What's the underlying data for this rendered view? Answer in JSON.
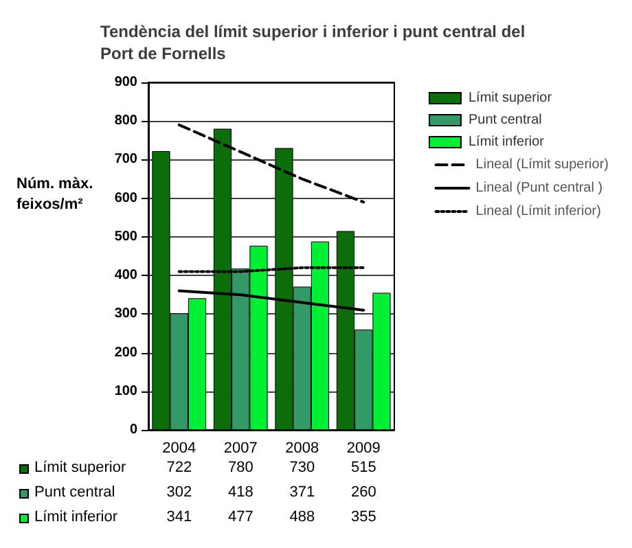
{
  "chart_data": {
    "type": "bar",
    "title": "Tendència del límit superior i inferior i punt central del Port de Fornells",
    "ylabel": "Núm. màx. feixos/m²",
    "categories": [
      "2004",
      "2007",
      "2008",
      "2009"
    ],
    "series": [
      {
        "name": "Límit superior",
        "color": "#0b6e0b",
        "values": [
          722,
          780,
          730,
          515
        ],
        "value_labels": [
          "722",
          "780",
          "730",
          "515"
        ]
      },
      {
        "name": "Punt central",
        "color": "#339966",
        "values": [
          302,
          418,
          371,
          260
        ],
        "value_labels": [
          "302",
          "418",
          "371",
          "260"
        ]
      },
      {
        "name": "Límit inferior",
        "color": "#00ee33",
        "values": [
          341,
          477,
          488,
          355
        ],
        "value_labels": [
          "341",
          "477",
          "488",
          "355"
        ]
      },
      {
        "name": "Lineal (Límit superior)",
        "type": "line",
        "color": "#000000",
        "line_style": "dashed",
        "marker": "none",
        "values": [
          790,
          720,
          650,
          590
        ]
      },
      {
        "name": "Lineal (Punt central )",
        "type": "line",
        "color": "#000000",
        "line_style": "solid",
        "marker": "none",
        "values": [
          360,
          350,
          330,
          310
        ]
      },
      {
        "name": "Lineal (Límit inferior)",
        "type": "line",
        "color": "#000000",
        "line_style": "dotted",
        "marker": "none",
        "values": [
          410,
          410,
          420,
          420
        ]
      }
    ],
    "ylim": [
      0,
      900
    ],
    "yticks": [
      0,
      100,
      200,
      300,
      400,
      500,
      600,
      700,
      800,
      900
    ],
    "grid": "y",
    "legend": "right"
  }
}
